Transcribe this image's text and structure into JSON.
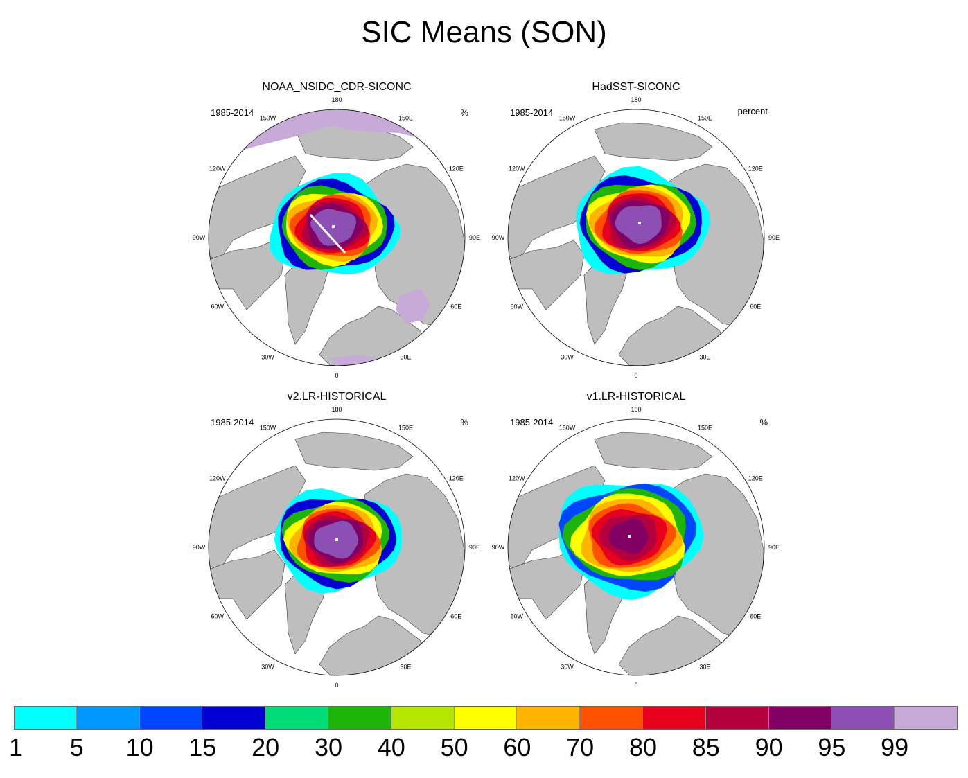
{
  "title": "SIC Means (SON)",
  "panels": [
    {
      "name": "NOAA_NSIDC_CDR-SICONC",
      "period": "1985-2014",
      "units": "%",
      "variant": "obs"
    },
    {
      "name": "HadSST-SICONC",
      "period": "1985-2014",
      "units": "percent",
      "variant": "had"
    },
    {
      "name": "v2.LR-HISTORICAL",
      "period": "1985-2014",
      "units": "%",
      "variant": "v2"
    },
    {
      "name": "v1.LR-HISTORICAL",
      "period": "1985-2014",
      "units": "%",
      "variant": "v1"
    }
  ],
  "lon_labels": [
    "180",
    "150E",
    "120E",
    "90E",
    "60E",
    "30E",
    "0",
    "30W",
    "60W",
    "90W",
    "120W",
    "150W"
  ],
  "colorbar": {
    "levels": [
      "1",
      "5",
      "10",
      "15",
      "20",
      "30",
      "40",
      "50",
      "60",
      "70",
      "80",
      "85",
      "90",
      "95",
      "99"
    ],
    "colors": [
      "#00ffff",
      "#0096ff",
      "#0046ff",
      "#0000d2",
      "#00dc78",
      "#1eb40a",
      "#b4e600",
      "#ffff00",
      "#ffb400",
      "#ff5000",
      "#e6001e",
      "#b4003c",
      "#820064",
      "#8c50b4",
      "#c8aad8"
    ]
  },
  "colors": {
    "land": "#bebebe",
    "ocean": "#ffffff",
    "coast": "#333333"
  }
}
